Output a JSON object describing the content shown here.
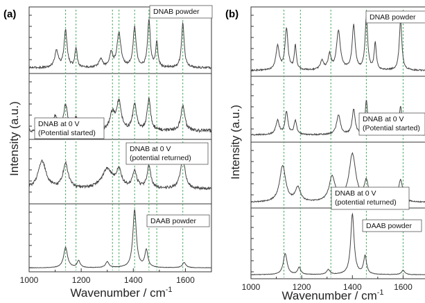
{
  "chart_data": [
    {
      "panel_label": "(a)",
      "type": "line",
      "xlabel": "Wavenumber / cm",
      "xlabel_superscript": "-1",
      "ylabel": "Intensity (a.u.)",
      "xlim": [
        1000,
        1700
      ],
      "x_ticks": [
        1000,
        1200,
        1400,
        1600
      ],
      "x_tick_labels": [
        "1000",
        "1200",
        "1400",
        "1600"
      ],
      "guide_lines": [
        1140,
        1180,
        1320,
        1345,
        1405,
        1460,
        1490,
        1590
      ],
      "series": [
        {
          "name": "DNAB powder",
          "label_lines": [
            "DNAB powder"
          ],
          "label_pos": "top-right",
          "baseline": 0.05,
          "noise": 0.018,
          "peaks": [
            [
              1105,
              0.3,
              8
            ],
            [
              1140,
              0.65,
              7
            ],
            [
              1180,
              0.35,
              5
            ],
            [
              1275,
              0.15,
              8
            ],
            [
              1315,
              0.25,
              7
            ],
            [
              1345,
              0.6,
              9
            ],
            [
              1405,
              0.7,
              7
            ],
            [
              1460,
              0.85,
              6
            ],
            [
              1490,
              0.45,
              5
            ],
            [
              1590,
              0.8,
              6
            ]
          ]
        },
        {
          "name": "DNAB at 0 V (Potential started)",
          "label_lines": [
            "DNAB at 0 V",
            "(Potential started)"
          ],
          "label_pos": "bottom-left",
          "baseline": 0.1,
          "noise": 0.03,
          "peaks": [
            [
              1100,
              0.25,
              12
            ],
            [
              1140,
              0.45,
              9
            ],
            [
              1180,
              0.22,
              7
            ],
            [
              1320,
              0.3,
              12
            ],
            [
              1345,
              0.5,
              10
            ],
            [
              1405,
              0.45,
              9
            ],
            [
              1460,
              0.55,
              8
            ],
            [
              1590,
              0.45,
              9
            ]
          ]
        },
        {
          "name": "DNAB at 0 V (potential returned)",
          "label_lines": [
            "DNAB at 0 V",
            "(potential returned)"
          ],
          "label_pos": "top-right",
          "baseline": 0.22,
          "noise": 0.025,
          "peaks": [
            [
              1050,
              0.5,
              18
            ],
            [
              1140,
              0.45,
              12
            ],
            [
              1300,
              0.35,
              25
            ],
            [
              1345,
              0.3,
              12
            ],
            [
              1405,
              0.3,
              10
            ],
            [
              1460,
              0.4,
              9
            ],
            [
              1590,
              0.55,
              11
            ]
          ]
        },
        {
          "name": "DAAB powder",
          "label_lines": [
            "DAAB powder"
          ],
          "label_pos": "top-right",
          "baseline": 0.02,
          "noise": 0.004,
          "peaks": [
            [
              1140,
              0.35,
              9
            ],
            [
              1190,
              0.12,
              7
            ],
            [
              1300,
              0.1,
              8
            ],
            [
              1405,
              1.0,
              8
            ],
            [
              1450,
              0.3,
              7
            ],
            [
              1595,
              0.09,
              8
            ]
          ]
        }
      ]
    },
    {
      "panel_label": "(b)",
      "type": "line",
      "xlabel": "Wavenumber / cm",
      "xlabel_superscript": "-1",
      "ylabel": "Intensity (a.u.)",
      "xlim": [
        1000,
        1700
      ],
      "x_ticks": [
        1000,
        1200,
        1400,
        1600
      ],
      "x_tick_labels": [
        "1000",
        "1200",
        "1400",
        "1600"
      ],
      "guide_lines": [
        1130,
        1195,
        1315,
        1455,
        1600
      ],
      "series": [
        {
          "name": "DNAB powder",
          "label_lines": [
            "DNAB powder"
          ],
          "label_pos": "top-right",
          "baseline": 0.05,
          "noise": 0.012,
          "peaks": [
            [
              1105,
              0.4,
              8
            ],
            [
              1140,
              0.7,
              7
            ],
            [
              1175,
              0.4,
              5
            ],
            [
              1280,
              0.15,
              8
            ],
            [
              1310,
              0.25,
              7
            ],
            [
              1345,
              0.65,
              9
            ],
            [
              1405,
              0.75,
              7
            ],
            [
              1455,
              0.9,
              6
            ],
            [
              1490,
              0.45,
              5
            ],
            [
              1590,
              0.85,
              6
            ]
          ]
        },
        {
          "name": "DNAB at 0 V (Potential started)",
          "label_lines": [
            "DNAB at 0 V",
            "(Potential started)"
          ],
          "label_pos": "mid-right",
          "baseline": 0.08,
          "noise": 0.012,
          "peaks": [
            [
              1105,
              0.25,
              8
            ],
            [
              1140,
              0.4,
              7
            ],
            [
              1175,
              0.25,
              6
            ],
            [
              1345,
              0.35,
              9
            ],
            [
              1405,
              0.45,
              7
            ],
            [
              1455,
              0.6,
              6
            ],
            [
              1490,
              0.3,
              5
            ],
            [
              1590,
              0.5,
              7
            ]
          ]
        },
        {
          "name": "DNAB at 0 V (potential returned)",
          "label_lines": [
            "DNAB at 0 V",
            "(potential returned)"
          ],
          "label_pos": "bottom-right",
          "baseline": 0.05,
          "noise": 0.01,
          "peaks": [
            [
              1125,
              0.65,
              14
            ],
            [
              1185,
              0.25,
              12
            ],
            [
              1320,
              0.45,
              14
            ],
            [
              1400,
              0.85,
              16
            ],
            [
              1455,
              0.35,
              10
            ],
            [
              1590,
              0.4,
              10
            ]
          ]
        },
        {
          "name": "DAAB powder",
          "label_lines": [
            "DAAB powder"
          ],
          "label_pos": "top-right",
          "baseline": 0.02,
          "noise": 0.004,
          "peaks": [
            [
              1135,
              0.35,
              9
            ],
            [
              1190,
              0.12,
              7
            ],
            [
              1305,
              0.08,
              8
            ],
            [
              1400,
              1.0,
              8
            ],
            [
              1450,
              0.3,
              7
            ],
            [
              1600,
              0.07,
              8
            ]
          ]
        }
      ]
    }
  ]
}
